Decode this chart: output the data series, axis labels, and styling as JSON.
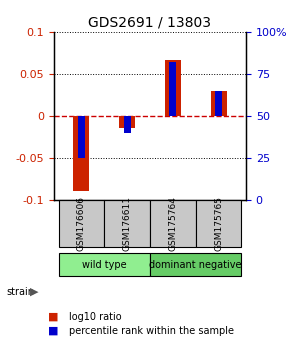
{
  "title": "GDS2691 / 13803",
  "samples": [
    "GSM176606",
    "GSM176611",
    "GSM175764",
    "GSM175765"
  ],
  "groups": [
    {
      "name": "wild type",
      "color": "#90EE90",
      "indices": [
        0,
        1
      ]
    },
    {
      "name": "dominant negative",
      "color": "#66CC66",
      "indices": [
        2,
        3
      ]
    }
  ],
  "red_bars": [
    -0.09,
    -0.015,
    0.067,
    0.03
  ],
  "blue_bars_pct": [
    25,
    40,
    82,
    65
  ],
  "ylim": [
    -0.1,
    0.1
  ],
  "left_yticks": [
    -0.1,
    -0.05,
    0,
    0.05,
    0.1
  ],
  "right_yticks": [
    0,
    25,
    50,
    75,
    100
  ],
  "bar_width": 0.35,
  "red_color": "#CC2200",
  "blue_color": "#0000CC",
  "zero_line_color": "#CC0000",
  "group_label": "strain"
}
